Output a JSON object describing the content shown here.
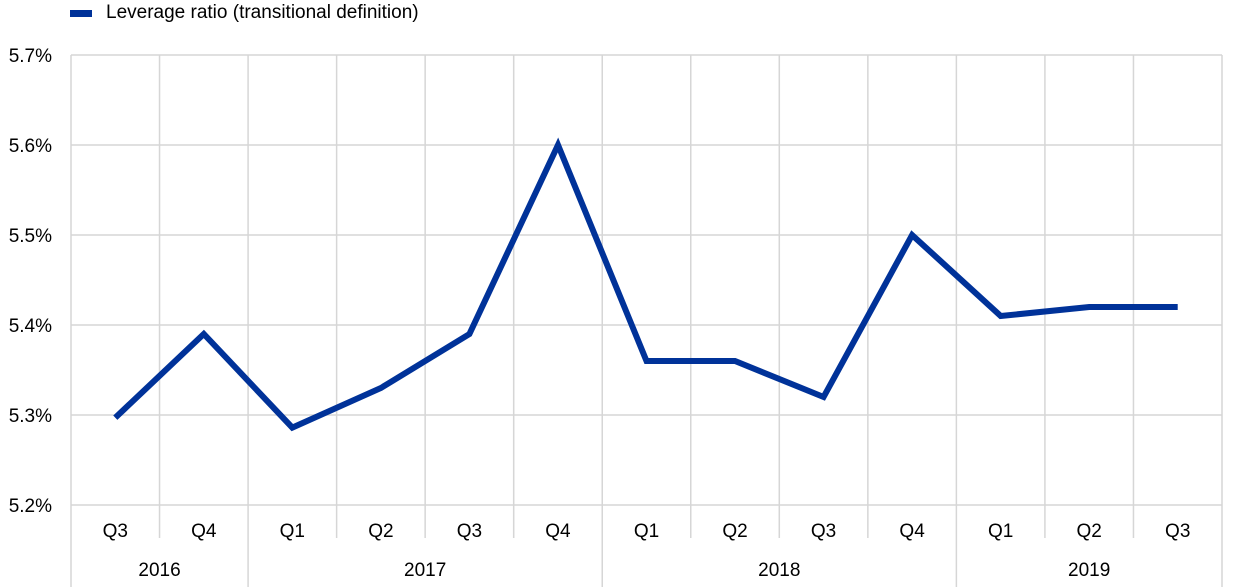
{
  "chart_data": {
    "type": "line",
    "legend_position": "top-left",
    "grid": true,
    "categories": [
      "Q3",
      "Q4",
      "Q1",
      "Q2",
      "Q3",
      "Q4",
      "Q1",
      "Q2",
      "Q3",
      "Q4",
      "Q1",
      "Q2",
      "Q3"
    ],
    "year_groups": [
      {
        "label": "2016",
        "count": 2
      },
      {
        "label": "2017",
        "count": 4
      },
      {
        "label": "2018",
        "count": 4
      },
      {
        "label": "2019",
        "count": 3
      }
    ],
    "series": [
      {
        "name": "Leverage ratio (transitional definition)",
        "color": "#003299",
        "values": [
          5.297,
          5.39,
          5.286,
          5.33,
          5.39,
          5.6,
          5.36,
          5.36,
          5.32,
          5.5,
          5.41,
          5.42,
          5.42
        ]
      }
    ],
    "ylim": [
      5.2,
      5.7
    ],
    "y_ticks": [
      "5.2%",
      "5.3%",
      "5.4%",
      "5.5%",
      "5.6%",
      "5.7%"
    ],
    "xlabel": "",
    "ylabel": ""
  }
}
